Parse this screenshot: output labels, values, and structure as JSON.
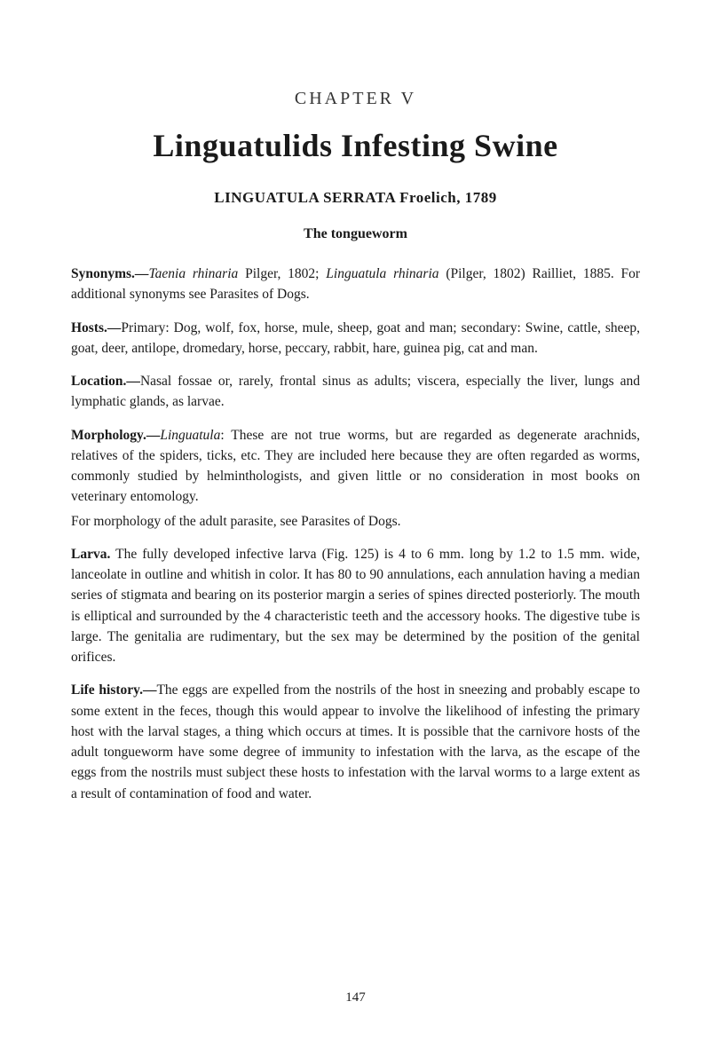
{
  "chapter_label": "CHAPTER V",
  "main_title": "Linguatulids Infesting Swine",
  "subtitle": "LINGUATULA SERRATA Froelich, 1789",
  "subsection": "The tongueworm",
  "synonyms": {
    "label": "Synonyms.—",
    "italic1": "Taenia rhinaria",
    "text1": " Pilger, 1802; ",
    "italic2": "Linguatula rhinaria",
    "text2": " (Pilger, 1802) Railliet, 1885. For additional synonyms see Parasites of Dogs."
  },
  "hosts": {
    "label": "Hosts.—",
    "text": "Primary: Dog, wolf, fox, horse, mule, sheep, goat and man; secondary: Swine, cattle, sheep, goat, deer, antilope, dromedary, horse, peccary, rabbit, hare, guinea pig, cat and man."
  },
  "location": {
    "label": "Location.—",
    "text": "Nasal fossae or, rarely, frontal sinus as adults; viscera, especially the liver, lungs and lymphatic glands, as larvae."
  },
  "morphology": {
    "label": "Morphology.—",
    "italic": "Linguatula",
    "text1": ": These are not true worms, but are regarded as degenerate arachnids, relatives of the spiders, ticks, etc. They are included here because they are often regarded as worms, commonly studied by helminthologists, and given little or no consideration in most books on veterinary entomology.",
    "text2": "For morphology of the adult parasite, see Parasites of Dogs."
  },
  "larva": {
    "label": "Larva.",
    "text": " The fully developed infective larva (Fig. 125) is 4 to 6 mm. long by 1.2 to 1.5 mm. wide, lanceolate in outline and whitish in color. It has 80 to 90 annulations, each annulation having a median series of stigmata and bearing on its posterior margin a series of spines directed posteriorly. The mouth is elliptical and surrounded by the 4 characteristic teeth and the accessory hooks. The digestive tube is large. The genitalia are rudimentary, but the sex may be determined by the position of the genital orifices."
  },
  "life_history": {
    "label": "Life history.—",
    "text": "The eggs are expelled from the nostrils of the host in sneezing and probably escape to some extent in the feces, though this would appear to involve the likelihood of infesting the primary host with the larval stages, a thing which occurs at times. It is possible that the carnivore hosts of the adult tongueworm have some degree of immunity to infestation with the larva, as the escape of the eggs from the nostrils must subject these hosts to infestation with the larval worms to a large extent as a result of contamination of food and water."
  },
  "page_number": "147"
}
